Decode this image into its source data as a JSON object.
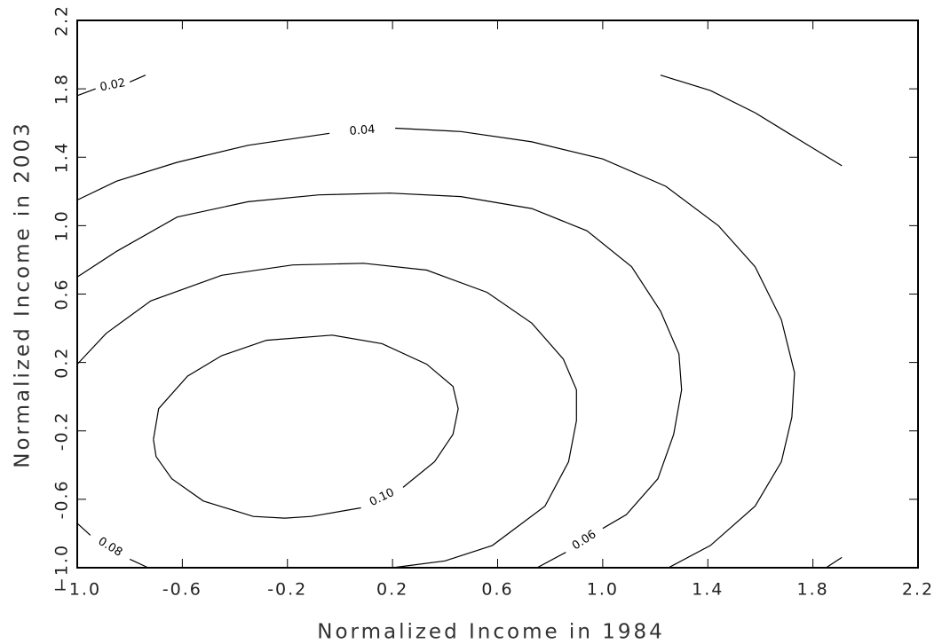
{
  "chart_data": {
    "type": "contour",
    "xlabel": "Normalized Income in 1984",
    "ylabel": "Normalized Income in 2003",
    "xlim": [
      -1,
      2.2
    ],
    "ylim": [
      -1,
      2.2
    ],
    "xticks": [
      {
        "value": -1,
        "label": "−1.0"
      },
      -0.6,
      -0.2,
      0.2,
      0.6,
      {
        "value": 1,
        "label": "1.0"
      },
      1.4,
      1.8,
      2.2
    ],
    "yticks": [
      {
        "value": -1,
        "label": "−1.0"
      },
      -0.6,
      -0.2,
      0.2,
      0.6,
      {
        "value": 1,
        "label": "1.0"
      },
      1.4,
      1.8,
      2.2
    ],
    "color": "#000000",
    "contours": [
      {
        "level": 0.02,
        "x": [
          -1.0,
          -0.93,
          null,
          -0.8,
          -0.74,
          null,
          1.22,
          1.41,
          1.58,
          1.75,
          1.91,
          null,
          1.85,
          1.91
        ],
        "y": [
          1.76,
          1.8,
          null,
          1.84,
          1.88,
          null,
          1.88,
          1.79,
          1.66,
          1.5,
          1.35,
          null,
          -1.0,
          -0.94
        ]
      },
      {
        "level": 0.04,
        "x": [
          -1.0,
          -0.85,
          -0.62,
          -0.35,
          -0.04,
          null,
          0.21,
          0.46,
          0.73,
          1.0,
          1.24,
          1.44,
          1.58,
          1.68,
          1.73,
          1.72,
          1.68,
          1.58,
          1.41,
          1.25
        ],
        "y": [
          1.15,
          1.26,
          1.37,
          1.47,
          1.54,
          null,
          1.57,
          1.55,
          1.49,
          1.39,
          1.23,
          1.0,
          0.76,
          0.45,
          0.14,
          -0.12,
          -0.38,
          -0.64,
          -0.87,
          -1.0
        ]
      },
      {
        "level": 0.06,
        "x": [
          -1.0,
          -0.85,
          -0.62,
          -0.35,
          -0.08,
          0.19,
          0.46,
          0.73,
          0.94,
          1.11,
          1.22,
          1.29,
          1.3,
          1.27,
          1.21,
          1.09,
          1.0,
          null,
          0.86,
          0.75
        ],
        "y": [
          0.7,
          0.85,
          1.05,
          1.14,
          1.18,
          1.19,
          1.17,
          1.1,
          0.97,
          0.76,
          0.5,
          0.25,
          0.04,
          -0.22,
          -0.48,
          -0.69,
          -0.77,
          null,
          -0.91,
          -1.0
        ]
      },
      {
        "level": 0.08,
        "x": [
          -1.0,
          -0.95,
          null,
          -0.8,
          -0.73,
          null,
          -1.0,
          -0.89,
          -0.72,
          -0.45,
          -0.18,
          0.09,
          0.33,
          0.56,
          0.73,
          0.85,
          0.9,
          0.9,
          0.87,
          0.78,
          0.58,
          0.4,
          0.2
        ],
        "y": [
          -0.74,
          -0.81,
          null,
          -0.95,
          -1.0,
          null,
          0.19,
          0.37,
          0.56,
          0.71,
          0.77,
          0.78,
          0.74,
          0.61,
          0.43,
          0.22,
          0.04,
          -0.14,
          -0.38,
          -0.64,
          -0.87,
          -0.96,
          -1.0
        ]
      },
      {
        "level": 0.1,
        "label": "0.10",
        "x": [
          -0.71,
          -0.69,
          -0.58,
          -0.45,
          -0.28,
          -0.03,
          0.16,
          0.33,
          0.43,
          0.45,
          0.43,
          0.36,
          0.24,
          null,
          0.08,
          -0.11,
          -0.21,
          -0.33,
          -0.52,
          -0.64,
          -0.7,
          -0.71
        ],
        "y": [
          -0.25,
          -0.07,
          0.12,
          0.24,
          0.33,
          0.36,
          0.31,
          0.19,
          0.06,
          -0.07,
          -0.22,
          -0.38,
          -0.53,
          null,
          -0.65,
          -0.7,
          -0.71,
          -0.7,
          -0.61,
          -0.48,
          -0.35,
          -0.25
        ]
      }
    ]
  }
}
